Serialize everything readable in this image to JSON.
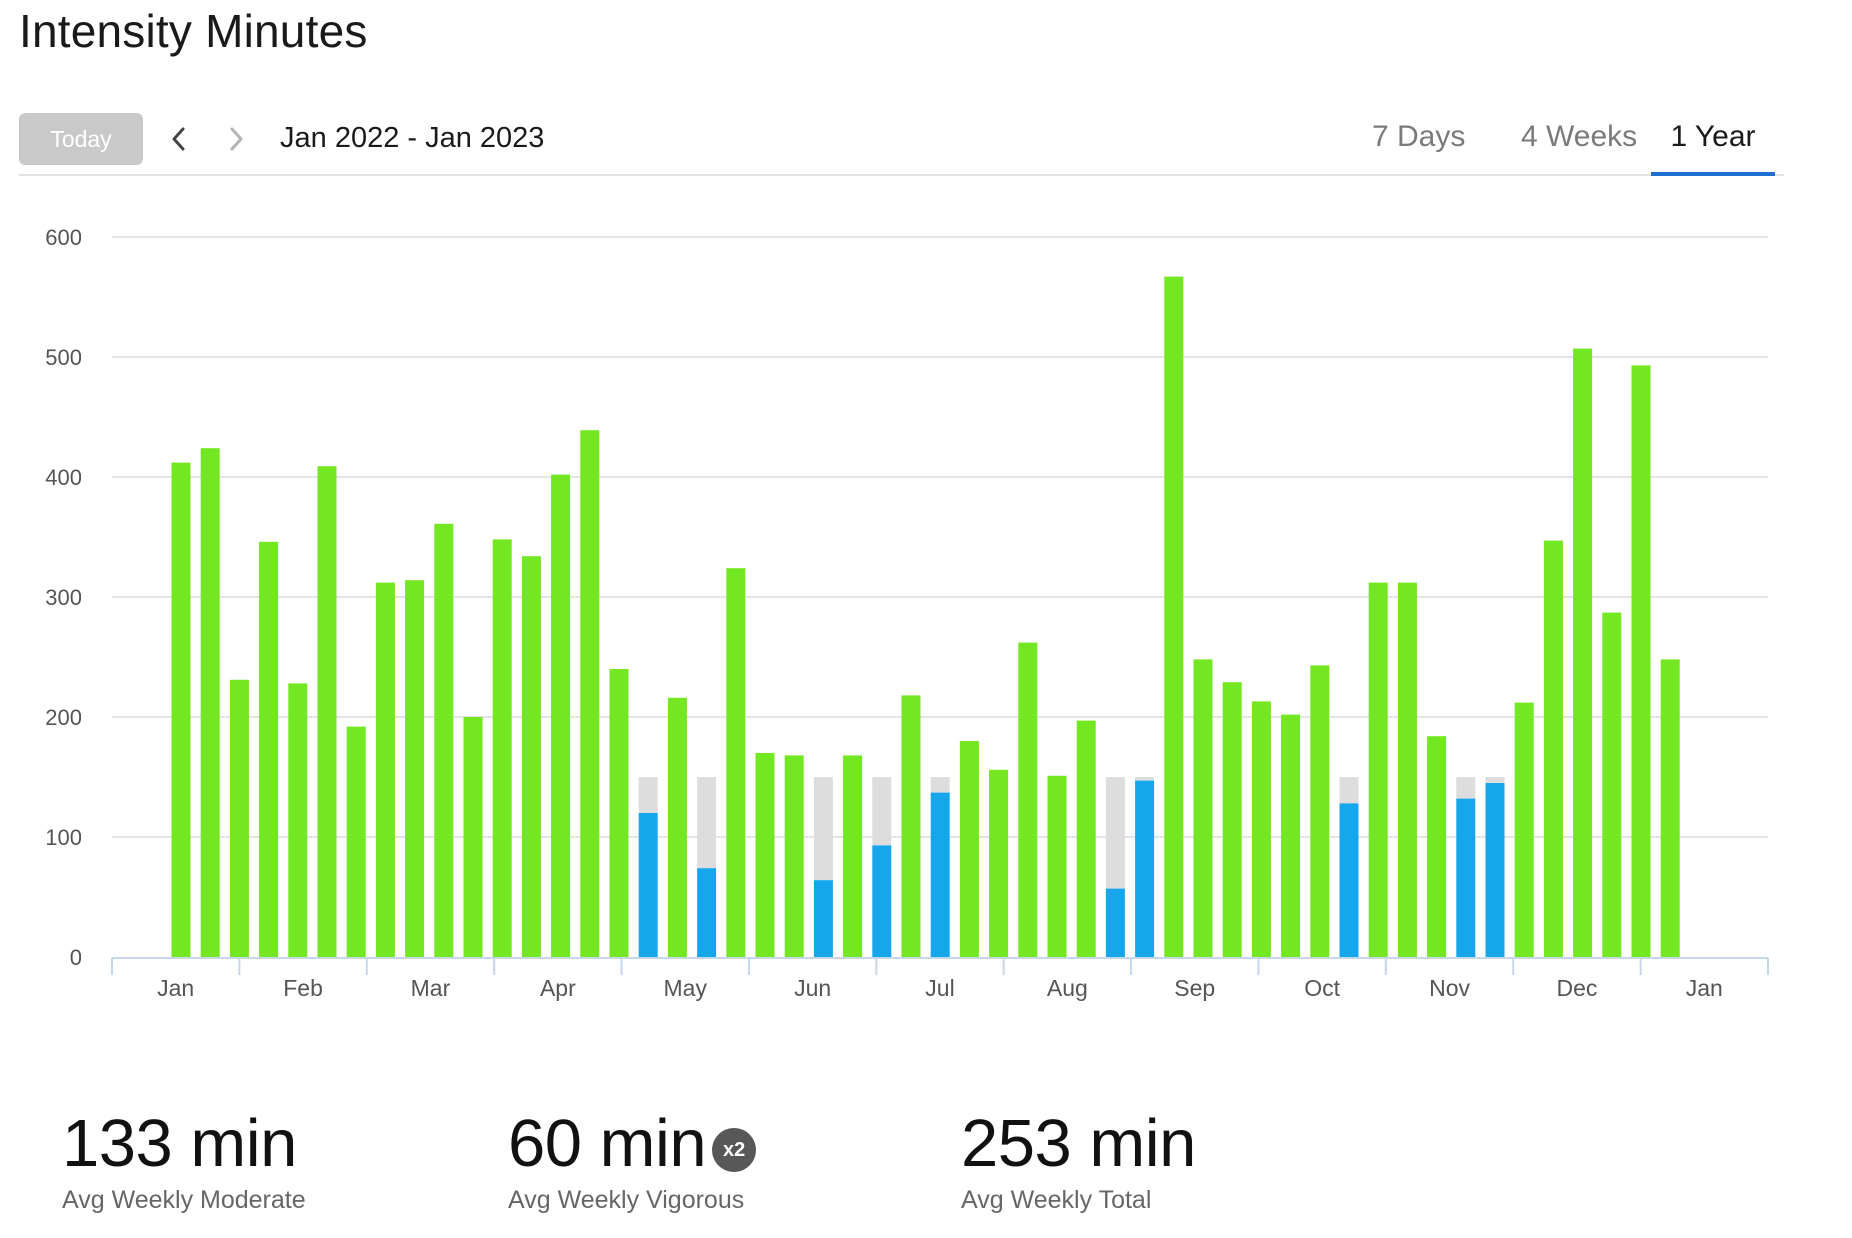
{
  "page": {
    "title": "Intensity Minutes"
  },
  "toolbar": {
    "today_label": "Today",
    "range_label": "Jan 2022 - Jan 2023",
    "tabs": [
      {
        "label": "7 Days",
        "active": false
      },
      {
        "label": "4 Weeks",
        "active": false
      },
      {
        "label": "1 Year",
        "active": true
      }
    ],
    "prev_icon": "chevron-left-icon",
    "next_icon": "chevron-right-icon"
  },
  "chart_data": {
    "type": "bar",
    "ylim": [
      0,
      600
    ],
    "yticks": [
      0,
      100,
      200,
      300,
      400,
      500,
      600
    ],
    "month_labels": [
      "Jan",
      "Feb",
      "Mar",
      "Apr",
      "May",
      "Jun",
      "Jul",
      "Aug",
      "Sep",
      "Oct",
      "Nov",
      "Dec",
      "Jan"
    ],
    "goal": 150,
    "colors": {
      "goal_met": "#72e722",
      "below_goal": "#16a6ec",
      "goal_remainder": "#dddddd",
      "grid": "#e5e5e5",
      "axis": "#c5d7ea"
    },
    "weekly_values": [
      412,
      424,
      231,
      346,
      228,
      409,
      192,
      312,
      314,
      361,
      200,
      348,
      334,
      402,
      439,
      240,
      120,
      216,
      74,
      324,
      170,
      168,
      64,
      168,
      93,
      218,
      137,
      180,
      156,
      262,
      151,
      197,
      57,
      147,
      567,
      248,
      229,
      213,
      202,
      243,
      128,
      312,
      312,
      184,
      132,
      145,
      212,
      347,
      507,
      287,
      493,
      248
    ]
  },
  "stats": [
    {
      "value": "133 min",
      "label": "Avg Weekly Moderate"
    },
    {
      "value": "60 min",
      "label": "Avg Weekly Vigorous",
      "badge": "x2"
    },
    {
      "value": "253 min",
      "label": "Avg Weekly Total"
    }
  ]
}
